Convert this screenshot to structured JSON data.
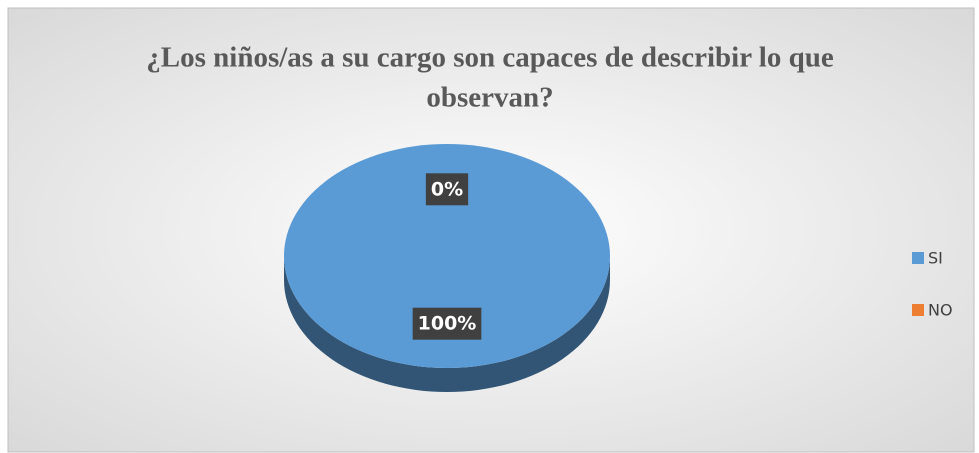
{
  "chart_data": {
    "type": "pie",
    "title": "¿Los niños/as a su cargo son capaces de describir lo que observan?",
    "title_lines": [
      "¿Los niños/as a su cargo son capaces de describir lo que",
      "observan?"
    ],
    "categories": [
      "SI",
      "NO"
    ],
    "values": [
      100,
      0
    ],
    "value_labels": [
      "100%",
      "0%"
    ],
    "colors": [
      "#5b9bd5",
      "#ed7d31"
    ],
    "legend": "right"
  }
}
